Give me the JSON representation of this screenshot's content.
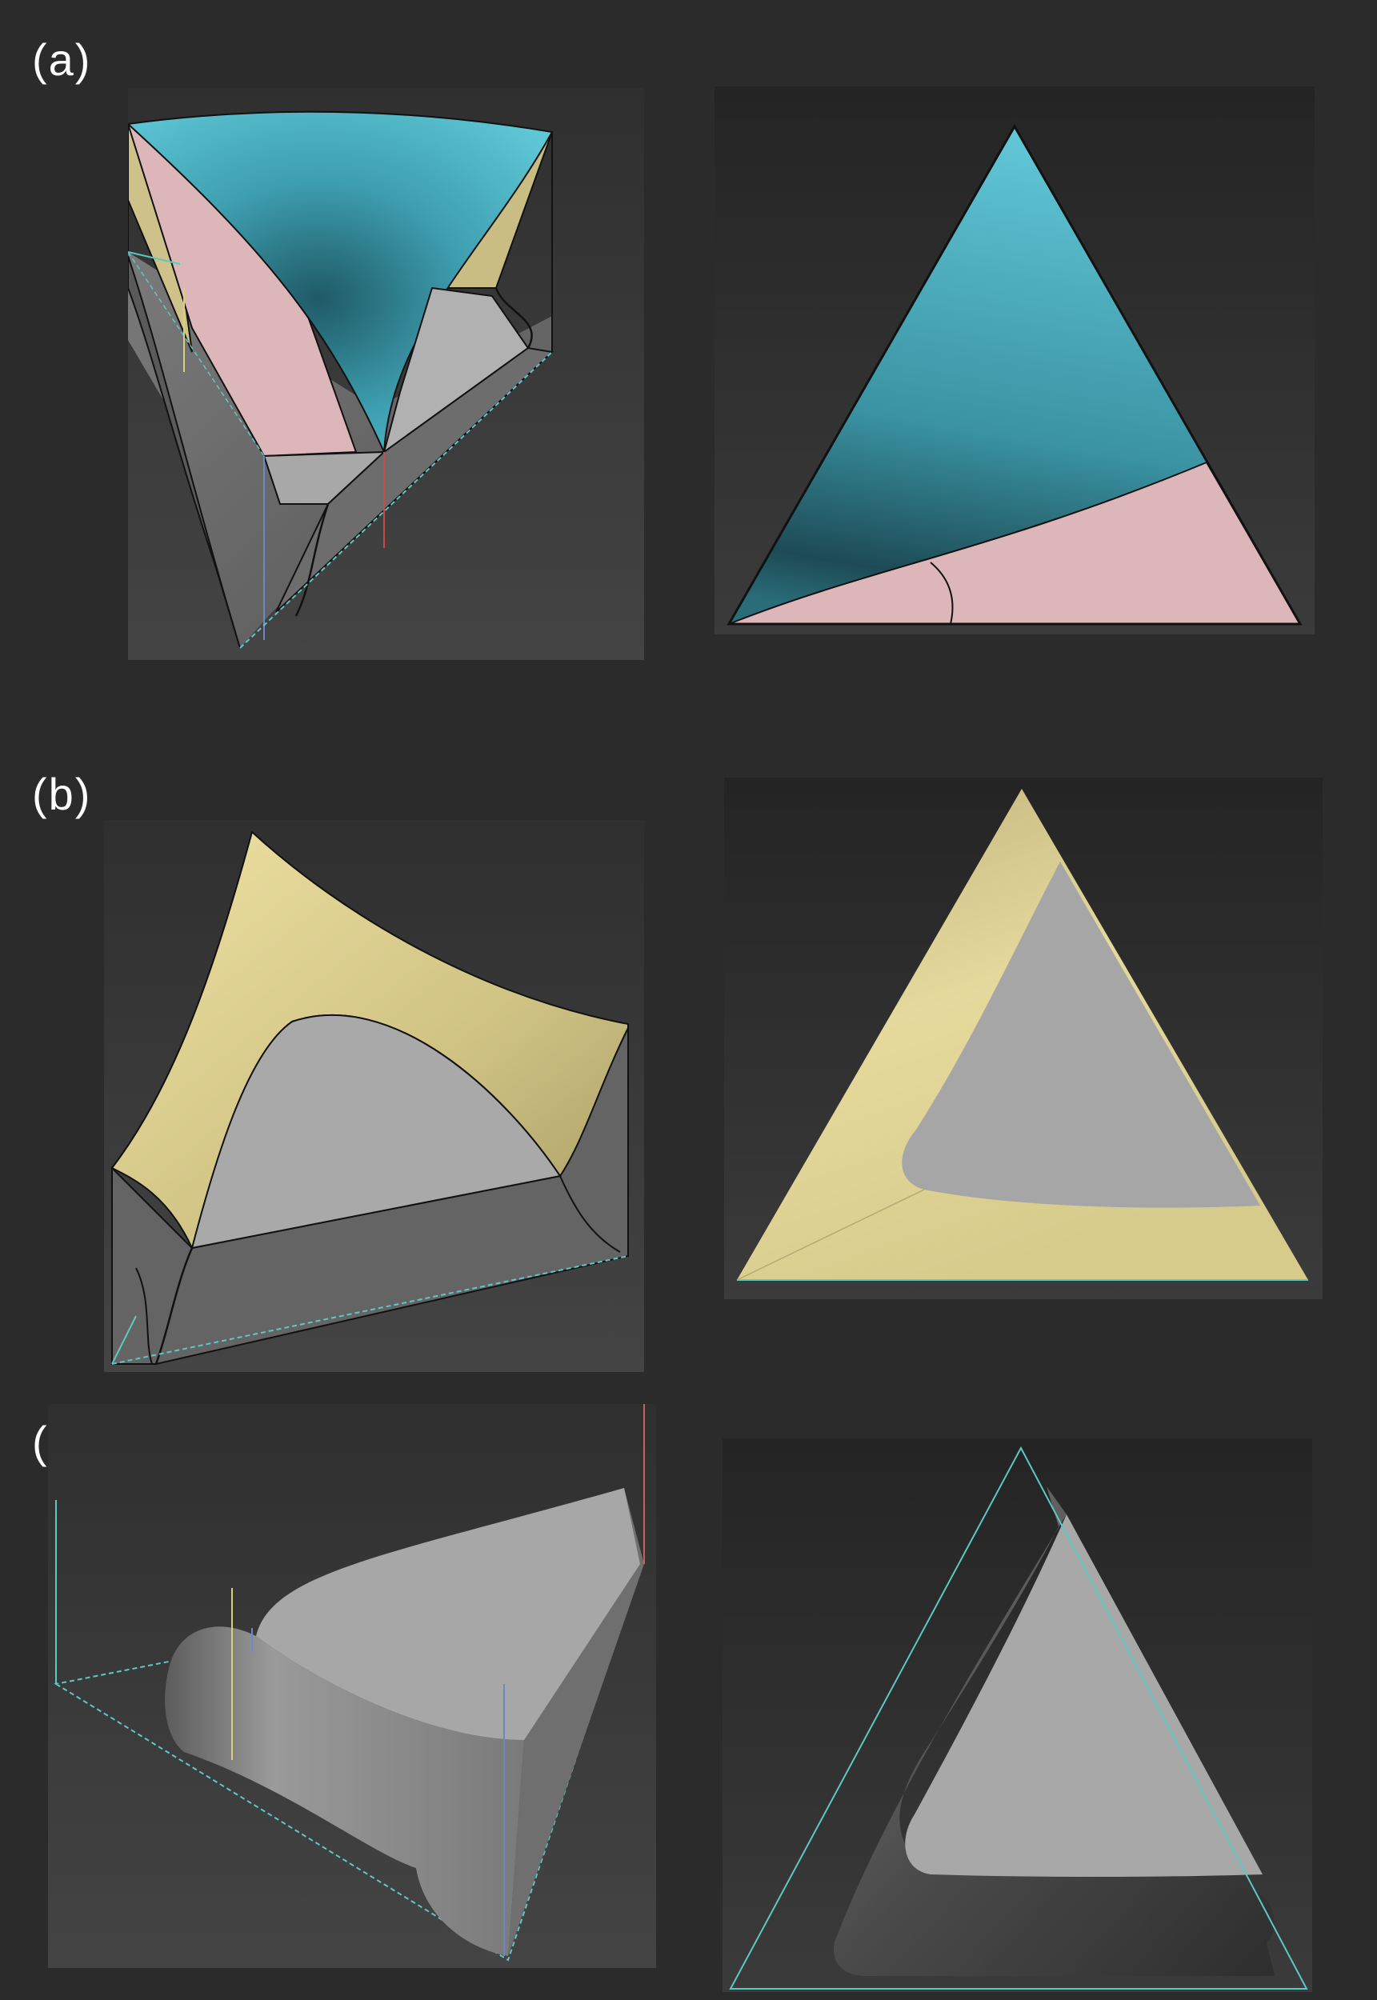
{
  "panels": [
    {
      "id": "a",
      "label": "(a)"
    },
    {
      "id": "b",
      "label": "(b)"
    },
    {
      "id": "c",
      "label": "(c)"
    }
  ],
  "colors": {
    "background": "#2b2b2b",
    "viewport": "#3a3a3a",
    "cyan_phase": "#4fb6c6",
    "pink_phase": "#dcb5b7",
    "yellow_phase": "#d8cb8a",
    "gray_phase": "#a9a9a9",
    "dark_gray": "#666666",
    "outline": "#111111",
    "axis_cyan": "#5cc9c3"
  },
  "icons": [
    "phase-diagram-3d-view",
    "phase-diagram-top-view"
  ]
}
